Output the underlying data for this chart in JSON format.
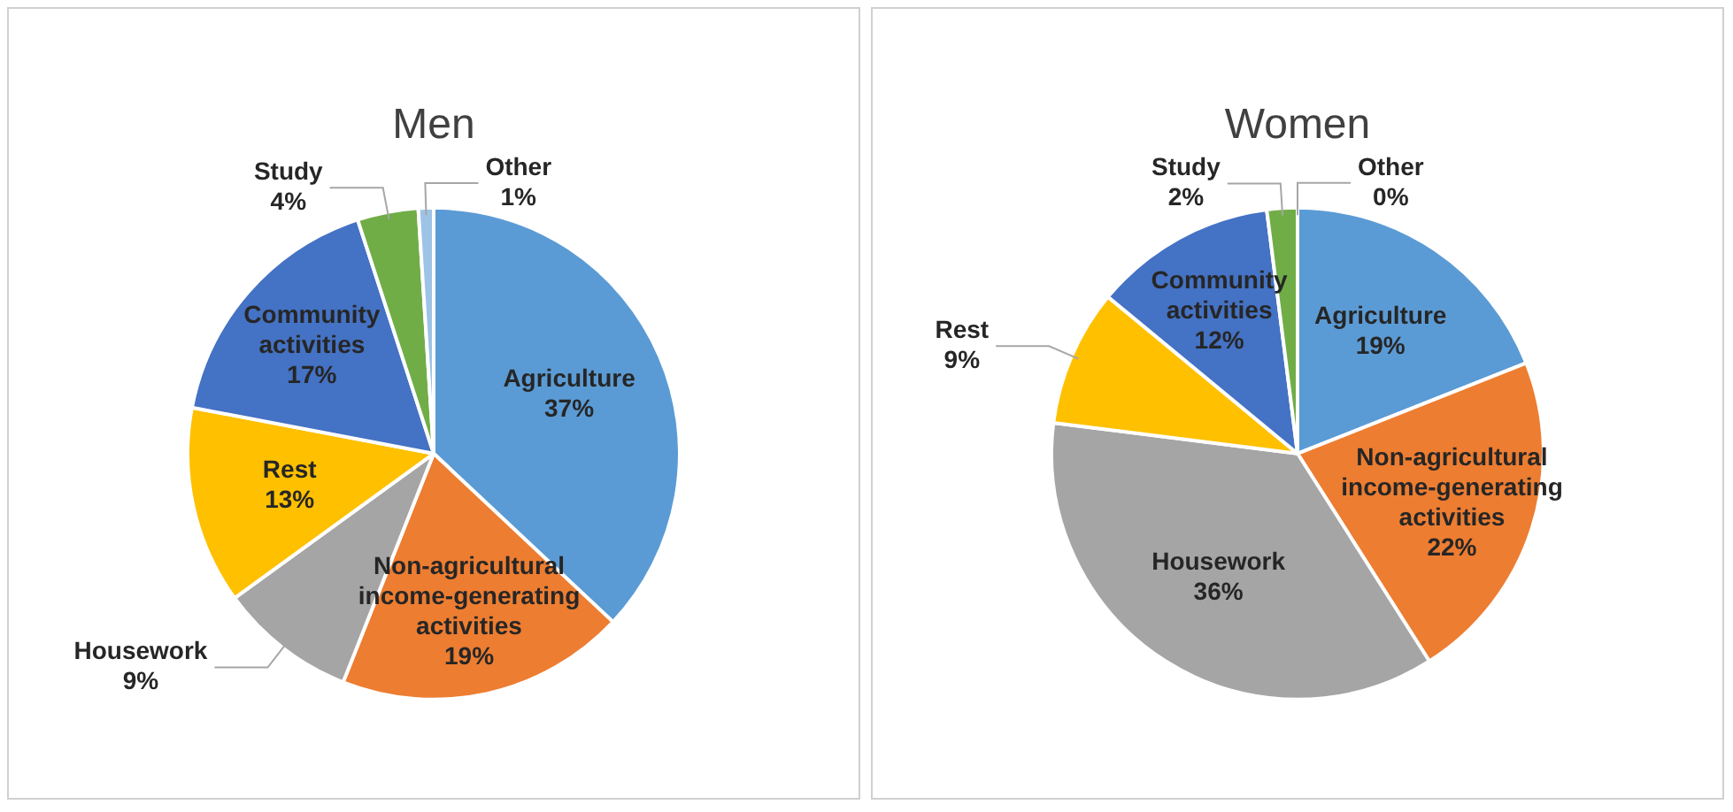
{
  "chart_data": [
    {
      "type": "pie",
      "title": "Men",
      "categories": [
        "Agriculture",
        "Non-agricultural income-generating activities",
        "Housework",
        "Rest",
        "Community activities",
        "Study",
        "Other"
      ],
      "values": [
        37,
        19,
        9,
        13,
        17,
        4,
        1
      ],
      "value_labels": [
        "37%",
        "19%",
        "9%",
        "13%",
        "17%",
        "4%",
        "1%"
      ],
      "colors": [
        "#5b9bd5",
        "#ed7d31",
        "#a5a5a5",
        "#ffc000",
        "#4472c4",
        "#70ad47",
        "#9dc3e6"
      ],
      "legend": false
    },
    {
      "type": "pie",
      "title": "Women",
      "categories": [
        "Agriculture",
        "Non-agricultural income-generating activities",
        "Housework",
        "Rest",
        "Community activities",
        "Study",
        "Other"
      ],
      "values": [
        19,
        22,
        36,
        9,
        12,
        2,
        0
      ],
      "value_labels": [
        "19%",
        "22%",
        "36%",
        "9%",
        "12%",
        "2%",
        "0%"
      ],
      "colors": [
        "#5b9bd5",
        "#ed7d31",
        "#a5a5a5",
        "#ffc000",
        "#4472c4",
        "#70ad47",
        "#9dc3e6"
      ],
      "legend": false
    }
  ]
}
